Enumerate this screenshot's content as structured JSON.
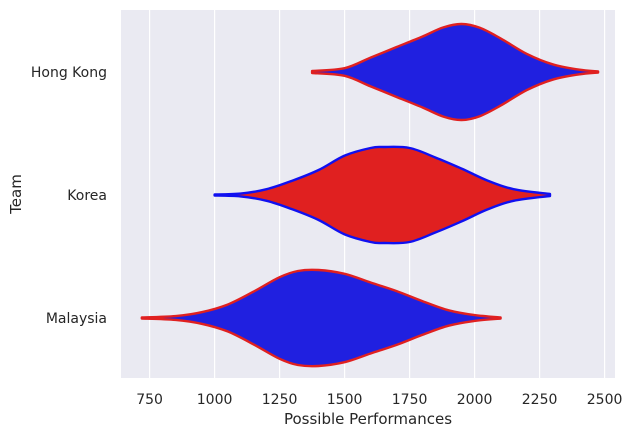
{
  "chart_data": {
    "type": "violin",
    "orientation": "horizontal",
    "xlabel": "Possible Performances",
    "ylabel": "Team",
    "xlim": [
      640,
      2540
    ],
    "x_ticks": [
      750,
      1000,
      1250,
      1500,
      1750,
      2000,
      2250,
      2500
    ],
    "grid": true,
    "background": "#eaeaf2",
    "categories": [
      "Hong Kong",
      "Korea",
      "Malaysia"
    ],
    "series": [
      {
        "category": "Hong Kong",
        "min": 1375,
        "max": 2475,
        "fill": "#2020e0",
        "edge": "#e02020",
        "profile": [
          [
            1375,
            0.02
          ],
          [
            1500,
            0.08
          ],
          [
            1600,
            0.3
          ],
          [
            1700,
            0.52
          ],
          [
            1800,
            0.74
          ],
          [
            1880,
            0.93
          ],
          [
            1950,
            1.0
          ],
          [
            2020,
            0.92
          ],
          [
            2100,
            0.7
          ],
          [
            2200,
            0.38
          ],
          [
            2300,
            0.16
          ],
          [
            2400,
            0.05
          ],
          [
            2475,
            0.01
          ]
        ]
      },
      {
        "category": "Korea",
        "min": 1000,
        "max": 2290,
        "fill": "#e02020",
        "edge": "#1010f0",
        "profile": [
          [
            1000,
            0.01
          ],
          [
            1100,
            0.03
          ],
          [
            1200,
            0.12
          ],
          [
            1300,
            0.3
          ],
          [
            1400,
            0.52
          ],
          [
            1500,
            0.82
          ],
          [
            1600,
            0.98
          ],
          [
            1650,
            1.0
          ],
          [
            1750,
            0.98
          ],
          [
            1850,
            0.78
          ],
          [
            1950,
            0.55
          ],
          [
            2050,
            0.3
          ],
          [
            2150,
            0.12
          ],
          [
            2290,
            0.02
          ]
        ]
      },
      {
        "category": "Malaysia",
        "min": 720,
        "max": 2100,
        "fill": "#2020e0",
        "edge": "#e02020",
        "profile": [
          [
            720,
            0.01
          ],
          [
            850,
            0.04
          ],
          [
            950,
            0.12
          ],
          [
            1050,
            0.28
          ],
          [
            1150,
            0.55
          ],
          [
            1250,
            0.85
          ],
          [
            1320,
            0.98
          ],
          [
            1400,
            1.0
          ],
          [
            1500,
            0.92
          ],
          [
            1600,
            0.74
          ],
          [
            1700,
            0.56
          ],
          [
            1800,
            0.35
          ],
          [
            1900,
            0.16
          ],
          [
            2000,
            0.06
          ],
          [
            2100,
            0.01
          ]
        ]
      }
    ]
  }
}
